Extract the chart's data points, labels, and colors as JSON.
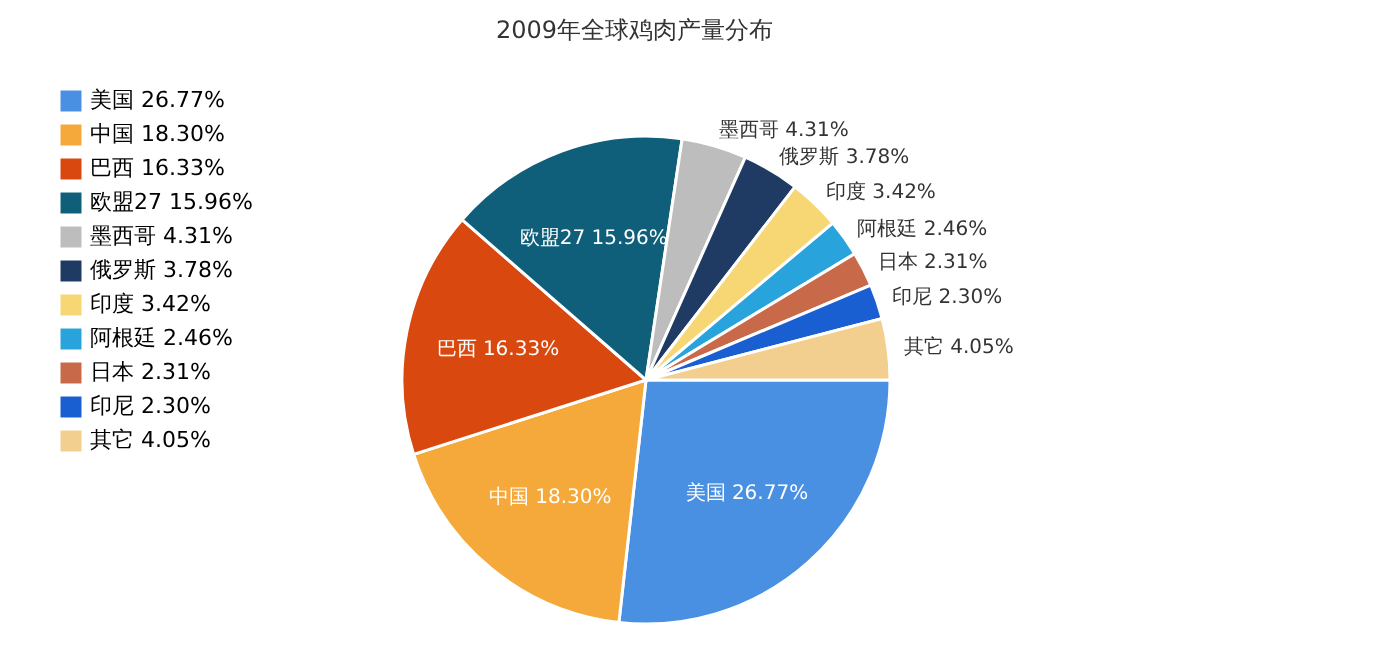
{
  "chart_data": {
    "type": "pie",
    "title": "2009年全球鸡肉产量分布",
    "categories": [
      "美国 26.77%",
      "中国 18.30%",
      "巴西 16.33%",
      "欧盟27 15.96%",
      "墨西哥 4.31%",
      "俄罗斯 3.78%",
      "印度 3.42%",
      "阿根廷 2.46%",
      "日本 2.31%",
      "印尼 2.30%",
      "其它 4.05%"
    ],
    "values": [
      26.77,
      18.3,
      16.33,
      15.96,
      4.31,
      3.78,
      3.42,
      2.46,
      2.31,
      2.3,
      4.05
    ],
    "colors": [
      "#4a90e2",
      "#f5a93a",
      "#d9480f",
      "#0f5f7a",
      "#bdbdbd",
      "#1f3b63",
      "#f7d774",
      "#29a3dc",
      "#c8694a",
      "#1a5fd1",
      "#f2cf8e"
    ],
    "legend": "left"
  }
}
